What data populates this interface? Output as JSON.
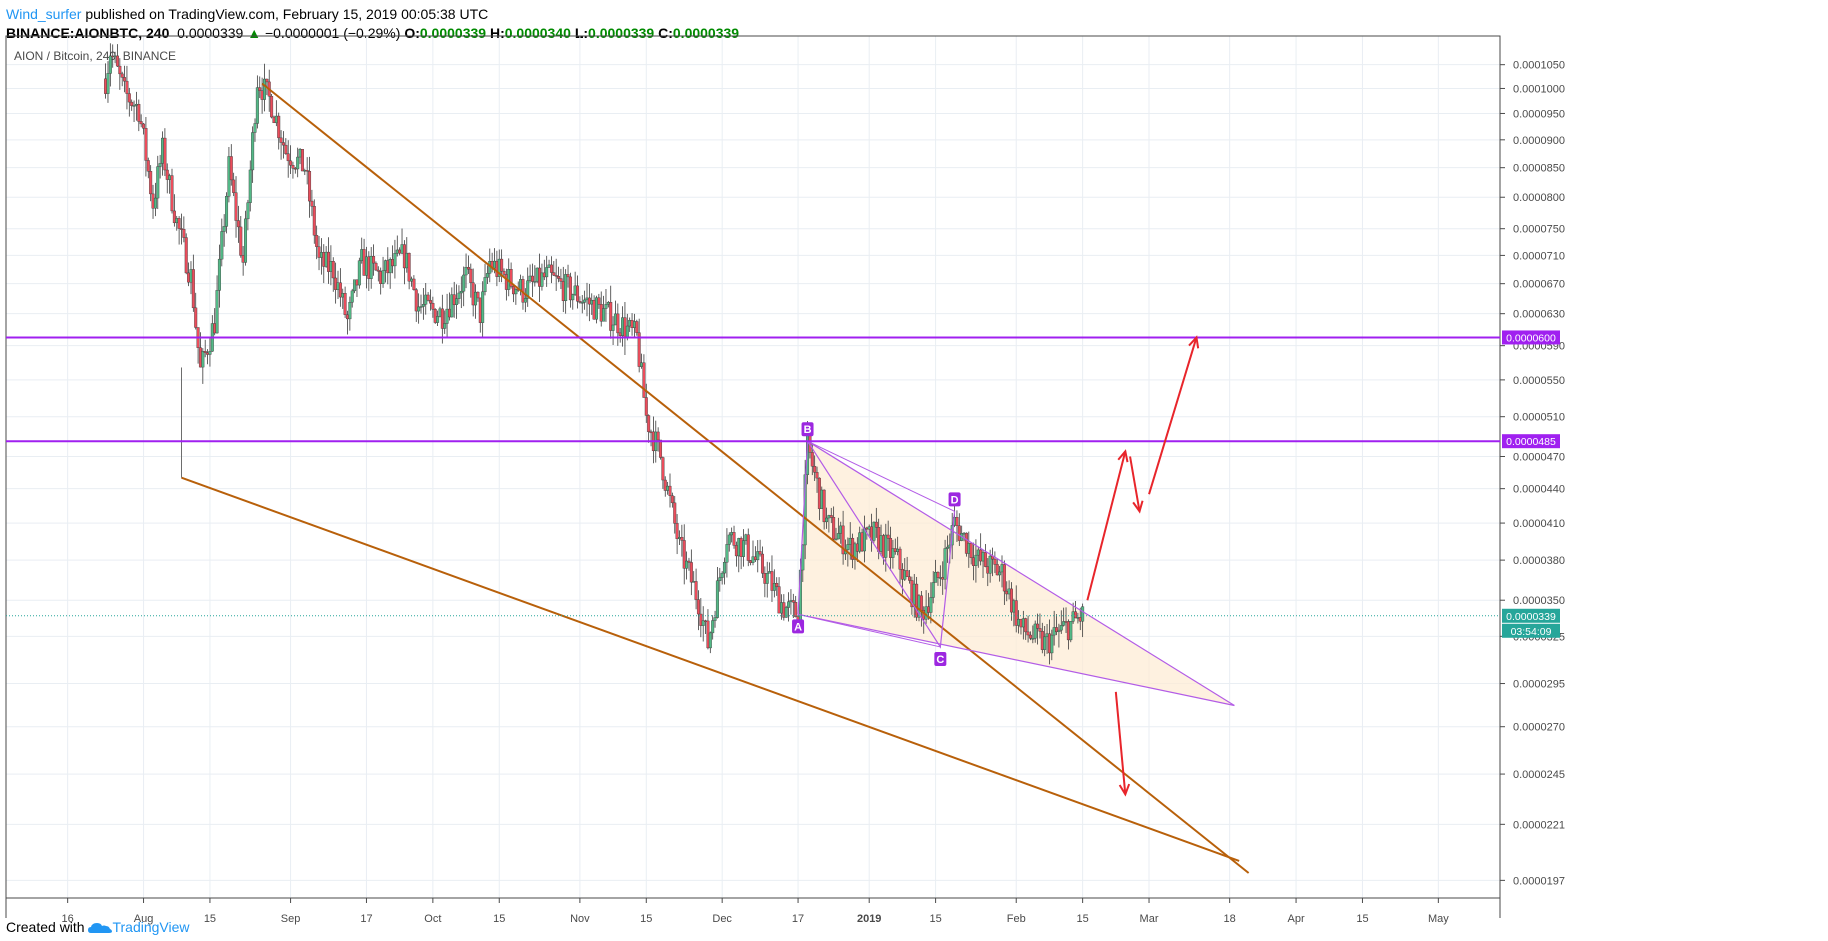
{
  "header": {
    "author": "Wind_surfer",
    "published": "published on TradingView.com, February 15, 2019 00:05:38 UTC",
    "symbol": "BINANCE:AIONBTC, 240",
    "last": "0.0000339",
    "change": "−0.0000001 (−0.29%)",
    "o_label": "O:",
    "o": "0.0000339",
    "h_label": "H:",
    "h": "0.0000340",
    "l_label": "L:",
    "l": "0.0000339",
    "c_label": "C:",
    "c": "0.0000339"
  },
  "footer": {
    "created_with": "Created with",
    "brand": "TradingView"
  },
  "colors": {
    "grid": "#e9eef3",
    "candle_up": "#53b987",
    "candle_down": "#eb4d5c",
    "trendline": "#b8600a",
    "horizontal": "#a020f0",
    "pattern": "#b35ce6",
    "pattern_fill": "#fdebd3",
    "arrow": "#e8252b",
    "last_price": "#26a69a"
  },
  "chart_data": {
    "type": "candlestick",
    "title": "AION / Bitcoin, 240, BINANCE",
    "y_scale": "log",
    "ylim": [
      1.9e-05,
      0.00011
    ],
    "y_ticks": [
      "0.0001050",
      "0.0001000",
      "0.0000950",
      "0.0000900",
      "0.0000850",
      "0.0000800",
      "0.0000750",
      "0.0000710",
      "0.0000670",
      "0.0000630",
      "0.0000590",
      "0.0000550",
      "0.0000510",
      "0.0000470",
      "0.0000440",
      "0.0000410",
      "0.0000380",
      "0.0000350",
      "0.0000325",
      "0.0000295",
      "0.0000270",
      "0.0000245",
      "0.0000221",
      "0.0000197"
    ],
    "x_range": [
      "2018-07-03",
      "2019-05-14"
    ],
    "x_ticks": [
      {
        "date": "2018-07-16",
        "label": "16"
      },
      {
        "date": "2018-08-01",
        "label": "Aug"
      },
      {
        "date": "2018-08-15",
        "label": "15"
      },
      {
        "date": "2018-09-01",
        "label": "Sep"
      },
      {
        "date": "2018-09-17",
        "label": "17"
      },
      {
        "date": "2018-10-01",
        "label": "Oct"
      },
      {
        "date": "2018-10-15",
        "label": "15"
      },
      {
        "date": "2018-11-01",
        "label": "Nov"
      },
      {
        "date": "2018-11-15",
        "label": "15"
      },
      {
        "date": "2018-12-01",
        "label": "Dec"
      },
      {
        "date": "2018-12-17",
        "label": "17"
      },
      {
        "date": "2019-01-01",
        "label": "2019"
      },
      {
        "date": "2019-01-15",
        "label": "15"
      },
      {
        "date": "2019-02-01",
        "label": "Feb"
      },
      {
        "date": "2019-02-15",
        "label": "15"
      },
      {
        "date": "2019-03-01",
        "label": "Mar"
      },
      {
        "date": "2019-03-18",
        "label": "18"
      },
      {
        "date": "2019-04-01",
        "label": "Apr"
      },
      {
        "date": "2019-04-15",
        "label": "15"
      },
      {
        "date": "2019-05-01",
        "label": "May"
      }
    ],
    "price_path": [
      [
        "2018-07-24",
        0.000102
      ],
      [
        "2018-07-25",
        0.000108
      ],
      [
        "2018-07-28",
        9.9e-05
      ],
      [
        "2018-07-31",
        9.6e-05
      ],
      [
        "2018-08-03",
        7.9e-05
      ],
      [
        "2018-08-05",
        8.8e-05
      ],
      [
        "2018-08-08",
        7.6e-05
      ],
      [
        "2018-08-11",
        6.8e-05
      ],
      [
        "2018-08-13",
        5.6e-05
      ],
      [
        "2018-08-16",
        6.2e-05
      ],
      [
        "2018-08-19",
        8.5e-05
      ],
      [
        "2018-08-22",
        7e-05
      ],
      [
        "2018-08-25",
        0.000102
      ],
      [
        "2018-08-28",
        9.7e-05
      ],
      [
        "2018-08-31",
        8.8e-05
      ],
      [
        "2018-09-04",
        8.5e-05
      ],
      [
        "2018-09-07",
        7e-05
      ],
      [
        "2018-09-10",
        6.9e-05
      ],
      [
        "2018-09-13",
        6.2e-05
      ],
      [
        "2018-09-16",
        7e-05
      ],
      [
        "2018-09-20",
        6.8e-05
      ],
      [
        "2018-09-25",
        7.1e-05
      ],
      [
        "2018-09-28",
        6.4e-05
      ],
      [
        "2018-10-03",
        6.3e-05
      ],
      [
        "2018-10-08",
        6.8e-05
      ],
      [
        "2018-10-11",
        6.3e-05
      ],
      [
        "2018-10-13",
        7e-05
      ],
      [
        "2018-10-16",
        6.8e-05
      ],
      [
        "2018-10-20",
        6.6e-05
      ],
      [
        "2018-10-25",
        6.8e-05
      ],
      [
        "2018-10-30",
        6.6e-05
      ],
      [
        "2018-11-04",
        6.4e-05
      ],
      [
        "2018-11-09",
        6.2e-05
      ],
      [
        "2018-11-13",
        6e-05
      ],
      [
        "2018-11-15",
        5.1e-05
      ],
      [
        "2018-11-18",
        4.7e-05
      ],
      [
        "2018-11-22",
        3.9e-05
      ],
      [
        "2018-11-26",
        3.5e-05
      ],
      [
        "2018-11-28",
        3.2e-05
      ],
      [
        "2018-12-02",
        4e-05
      ],
      [
        "2018-12-06",
        3.9e-05
      ],
      [
        "2018-12-10",
        3.7e-05
      ],
      [
        "2018-12-14",
        3.45e-05
      ],
      [
        "2018-12-17",
        3.4e-05
      ],
      [
        "2018-12-19",
        4.8e-05
      ],
      [
        "2018-12-23",
        4.1e-05
      ],
      [
        "2018-12-28",
        3.9e-05
      ],
      [
        "2019-01-02",
        4e-05
      ],
      [
        "2019-01-07",
        3.8e-05
      ],
      [
        "2019-01-12",
        3.4e-05
      ],
      [
        "2019-01-16",
        3.7e-05
      ],
      [
        "2019-01-19",
        4.1e-05
      ],
      [
        "2019-01-24",
        3.8e-05
      ],
      [
        "2019-01-29",
        3.7e-05
      ],
      [
        "2019-02-02",
        3.3e-05
      ],
      [
        "2019-02-07",
        3.2e-05
      ],
      [
        "2019-02-11",
        3.3e-05
      ],
      [
        "2019-02-15",
        3.39e-05
      ]
    ],
    "last_price": {
      "value": "0.0000339",
      "countdown": "03:54:09"
    },
    "horizontal_lines": [
      {
        "value": 6e-05,
        "label": "0.0000600"
      },
      {
        "value": 4.85e-05,
        "label": "0.0000485"
      }
    ],
    "trendlines": [
      {
        "from": [
          "2018-08-26",
          0.000101
        ],
        "to": [
          "2019-03-22",
          2e-05
        ]
      },
      {
        "from": [
          "2018-08-09",
          4.5e-05
        ],
        "to": [
          "2019-03-20",
          2.05e-05
        ]
      }
    ],
    "wedge": {
      "upper": {
        "from": [
          "2018-12-19",
          4.85e-05
        ],
        "to": [
          "2019-03-19",
          2.82e-05
        ]
      },
      "lower": {
        "from": [
          "2018-12-17",
          3.4e-05
        ],
        "to": [
          "2019-03-19",
          2.82e-05
        ]
      }
    },
    "abcd_pattern": [
      {
        "label": "A",
        "date": "2018-12-17",
        "value": 3.4e-05
      },
      {
        "label": "B",
        "date": "2018-12-19",
        "value": 4.85e-05
      },
      {
        "label": "C",
        "date": "2019-01-16",
        "value": 3.18e-05
      },
      {
        "label": "D",
        "date": "2019-01-19",
        "value": 4.2e-05
      }
    ],
    "arrows": [
      {
        "from": [
          "2019-02-16",
          3.5e-05
        ],
        "to": [
          "2019-02-24",
          4.75e-05
        ]
      },
      {
        "from": [
          "2019-02-25",
          4.7e-05
        ],
        "to": [
          "2019-02-27",
          4.2e-05
        ]
      },
      {
        "from": [
          "2019-03-01",
          4.35e-05
        ],
        "to": [
          "2019-03-11",
          6e-05
        ]
      },
      {
        "from": [
          "2019-02-22",
          2.9e-05
        ],
        "to": [
          "2019-02-24",
          2.35e-05
        ]
      }
    ]
  }
}
